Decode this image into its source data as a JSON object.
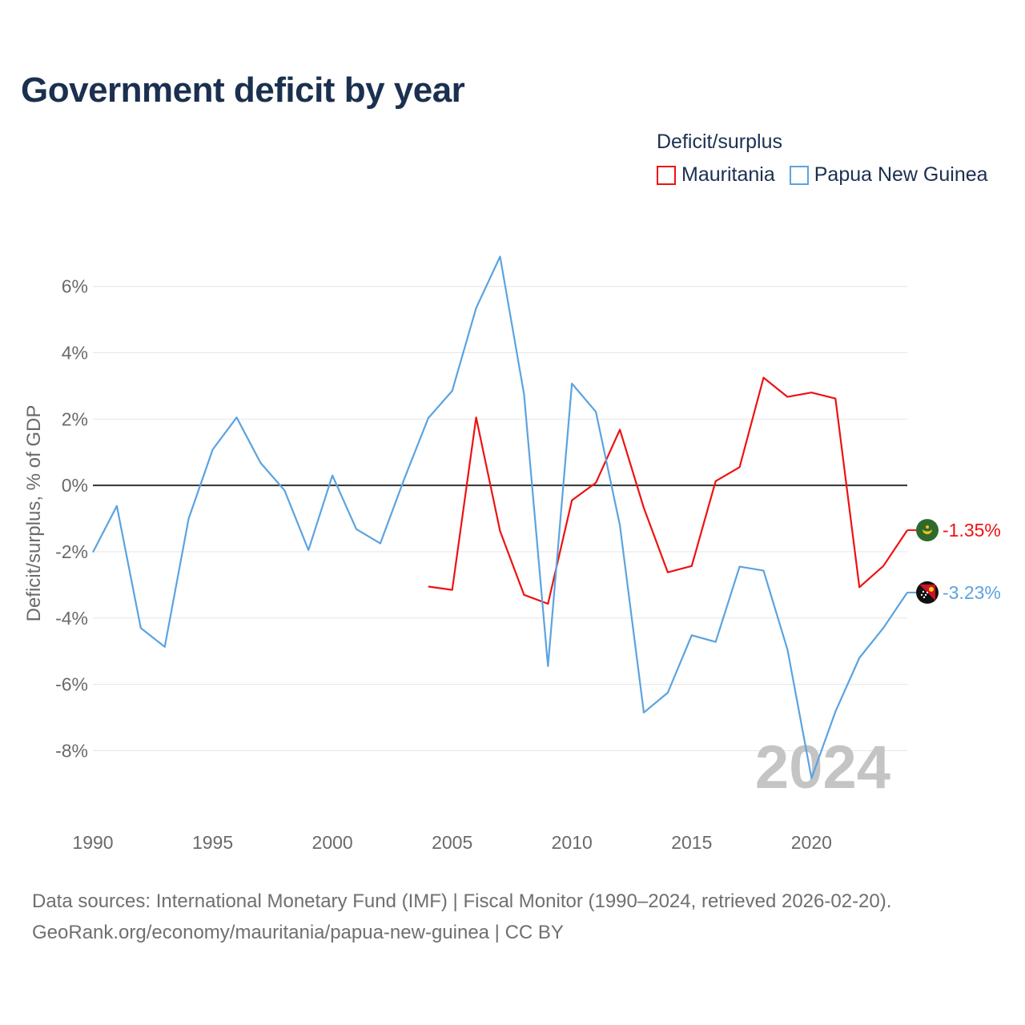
{
  "title": "Government deficit by year",
  "legend": {
    "title": "Deficit/surplus",
    "items": [
      {
        "label": "Mauritania",
        "color": "#ee1111"
      },
      {
        "label": "Papua New Guinea",
        "color": "#5ba3e0"
      }
    ]
  },
  "year_watermark": "2024",
  "footer": {
    "line1": "Data sources: International Monetary Fund (IMF) | Fiscal Monitor (1990–2024, retrieved 2026-02-20).",
    "line2": "GeoRank.org/economy/mauritania/papua-new-guinea | CC BY"
  },
  "chart_data": {
    "type": "line",
    "title": "Government deficit by year",
    "xlabel": "",
    "ylabel": "Deficit/surplus, % of GDP",
    "xlim": [
      1990,
      2024
    ],
    "ylim": [
      -9.8,
      7.2
    ],
    "x_ticks": [
      1990,
      1995,
      2000,
      2005,
      2010,
      2015,
      2020
    ],
    "y_ticks": [
      6,
      4,
      2,
      0,
      -2,
      -4,
      -6,
      -8
    ],
    "y_tick_labels": [
      "6%",
      "4%",
      "2%",
      "0%",
      "-2%",
      "-4%",
      "-6%",
      "-8%"
    ],
    "grid": true,
    "legend_position": "top-right",
    "series": [
      {
        "name": "Mauritania",
        "color": "#ee1111",
        "flag": "mauritania-flag-icon",
        "end_label": "-1.35%",
        "x": [
          2004,
          2005,
          2006,
          2007,
          2008,
          2009,
          2010,
          2011,
          2012,
          2013,
          2014,
          2015,
          2016,
          2017,
          2018,
          2019,
          2020,
          2021,
          2022,
          2023,
          2024
        ],
        "values": [
          -3.05,
          -3.15,
          2.05,
          -1.38,
          -3.3,
          -3.57,
          -0.45,
          0.08,
          1.68,
          -0.68,
          -2.62,
          -2.43,
          0.13,
          0.55,
          3.25,
          2.67,
          2.8,
          2.62,
          -3.07,
          -2.43,
          -1.35
        ]
      },
      {
        "name": "Papua New Guinea",
        "color": "#5ba3e0",
        "flag": "papua-new-guinea-flag-icon",
        "end_label": "-3.23%",
        "x": [
          1990,
          1991,
          1992,
          1993,
          1994,
          1995,
          1996,
          1997,
          1998,
          1999,
          2000,
          2001,
          2002,
          2003,
          2004,
          2005,
          2006,
          2007,
          2008,
          2009,
          2010,
          2011,
          2012,
          2013,
          2014,
          2015,
          2016,
          2017,
          2018,
          2019,
          2020,
          2021,
          2022,
          2023,
          2024
        ],
        "values": [
          -2.02,
          -0.62,
          -4.3,
          -4.87,
          -1.0,
          1.08,
          2.05,
          0.68,
          -0.15,
          -1.95,
          0.3,
          -1.32,
          -1.75,
          0.2,
          2.03,
          2.85,
          5.35,
          6.9,
          2.75,
          -5.45,
          3.07,
          2.22,
          -1.2,
          -6.85,
          -6.25,
          -4.52,
          -4.72,
          -2.45,
          -2.57,
          -4.95,
          -8.83,
          -6.82,
          -5.2,
          -4.3,
          -3.23
        ]
      }
    ]
  }
}
